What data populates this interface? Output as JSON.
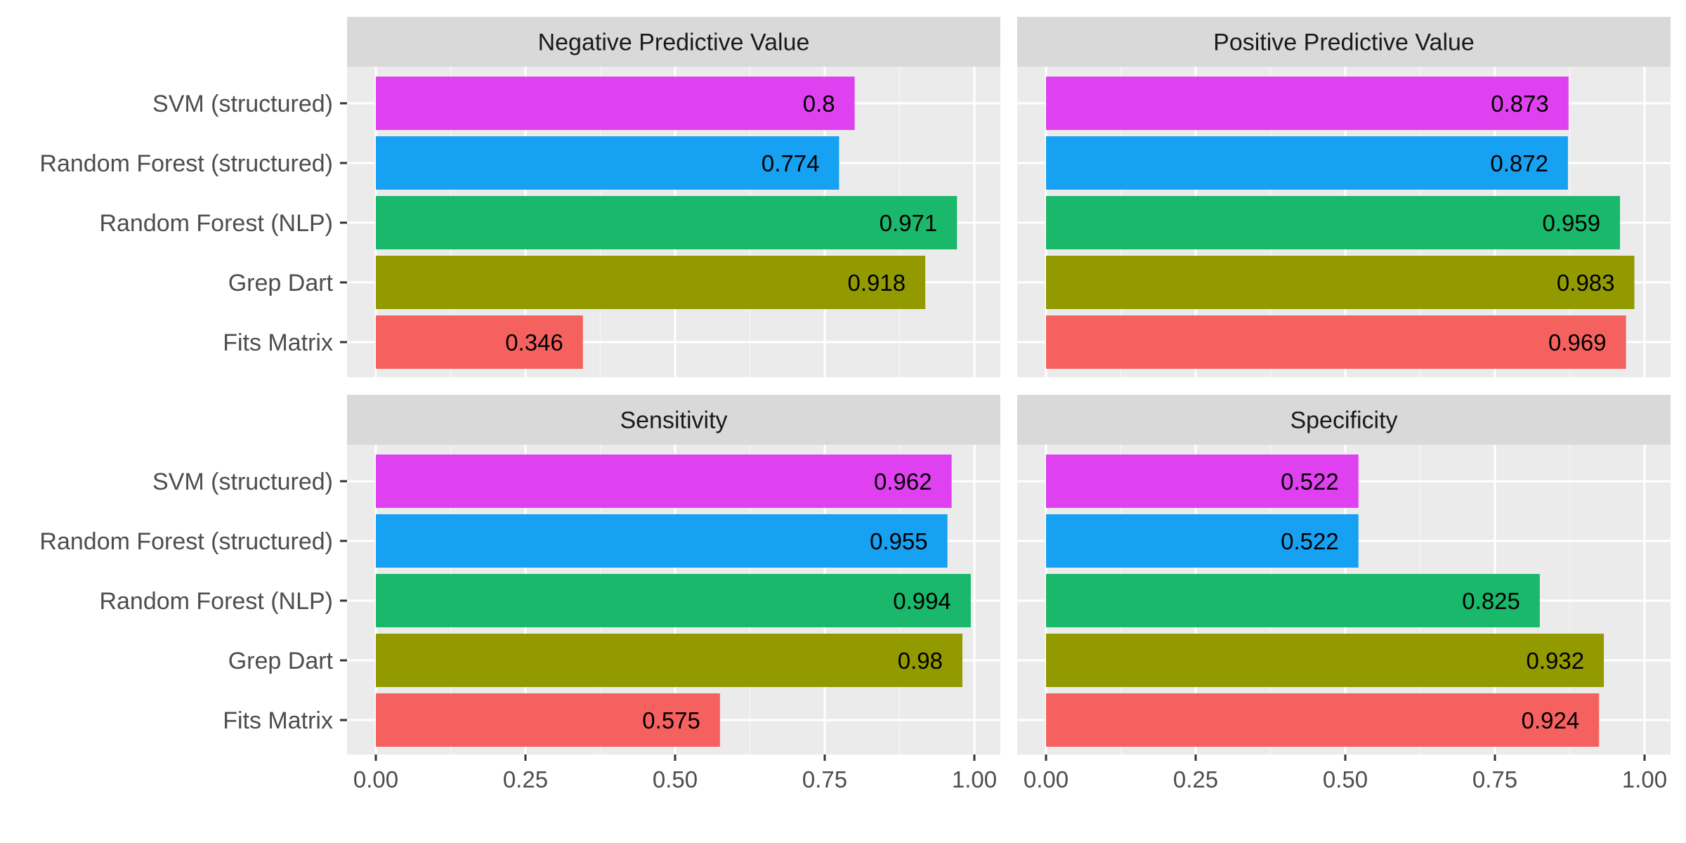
{
  "chart_data": {
    "type": "bar",
    "orientation": "horizontal",
    "facet_layout": "2x2",
    "categories": [
      "SVM (structured)",
      "Random Forest (structured)",
      "Random Forest (NLP)",
      "Grep Dart",
      "Fits Matrix"
    ],
    "category_colors": [
      "#E041F0",
      "#17A1F2",
      "#1AB86B",
      "#929A00",
      "#F5615F"
    ],
    "xlim": [
      0,
      1
    ],
    "xticks": [
      "0.00",
      "0.25",
      "0.50",
      "0.75",
      "1.00"
    ],
    "grid": true,
    "legend": "none",
    "xlabel": "",
    "ylabel": "",
    "panels": [
      {
        "title": "Negative Predictive Value",
        "values": [
          0.8,
          0.774,
          0.971,
          0.918,
          0.346
        ],
        "labels": [
          "0.8",
          "0.774",
          "0.971",
          "0.918",
          "0.346"
        ]
      },
      {
        "title": "Positive Predictive Value",
        "values": [
          0.873,
          0.872,
          0.959,
          0.983,
          0.969
        ],
        "labels": [
          "0.873",
          "0.872",
          "0.959",
          "0.983",
          "0.969"
        ]
      },
      {
        "title": "Sensitivity",
        "values": [
          0.962,
          0.955,
          0.994,
          0.98,
          0.575
        ],
        "labels": [
          "0.962",
          "0.955",
          "0.994",
          "0.98",
          "0.575"
        ]
      },
      {
        "title": "Specificity",
        "values": [
          0.522,
          0.522,
          0.825,
          0.932,
          0.924
        ],
        "labels": [
          "0.522",
          "0.522",
          "0.825",
          "0.932",
          "0.924"
        ]
      }
    ]
  }
}
